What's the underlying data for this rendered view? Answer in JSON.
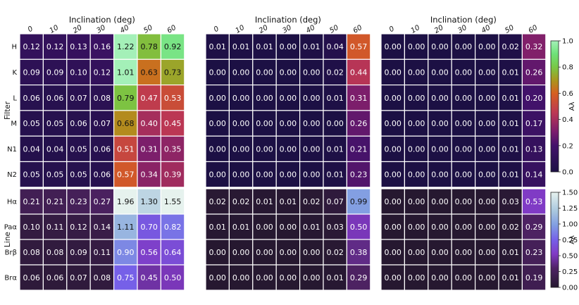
{
  "chart_data": {
    "type": "heatmap",
    "x_title": "Inclination (deg)",
    "x_ticks": [
      "0",
      "10",
      "20",
      "30",
      "40",
      "50",
      "60"
    ],
    "rows": {
      "top": {
        "axis_label": "Filter",
        "categories": [
          "H",
          "K",
          "L",
          "M",
          "N1",
          "N2"
        ],
        "colorbar": {
          "label": "Aλ",
          "range": [
            0.0,
            1.0
          ],
          "ticks": [
            "0.0",
            "0.2",
            "0.4",
            "0.6",
            "0.8",
            "1.0"
          ],
          "colormap": "viridis-like"
        },
        "panels": [
          [
            [
              0.12,
              0.12,
              0.13,
              0.16,
              1.22,
              0.78,
              0.92
            ],
            [
              0.09,
              0.09,
              0.1,
              0.12,
              1.01,
              0.63,
              0.73
            ],
            [
              0.06,
              0.06,
              0.07,
              0.08,
              0.79,
              0.47,
              0.53
            ],
            [
              0.05,
              0.05,
              0.06,
              0.07,
              0.68,
              0.4,
              0.45
            ],
            [
              0.04,
              0.04,
              0.05,
              0.06,
              0.51,
              0.31,
              0.35
            ],
            [
              0.05,
              0.05,
              0.05,
              0.06,
              0.57,
              0.34,
              0.39
            ]
          ],
          [
            [
              0.01,
              0.01,
              0.01,
              0.0,
              0.01,
              0.04,
              0.57
            ],
            [
              0.0,
              0.0,
              0.0,
              0.0,
              0.0,
              0.02,
              0.44
            ],
            [
              0.0,
              0.0,
              0.0,
              0.0,
              0.0,
              0.01,
              0.31
            ],
            [
              0.0,
              0.0,
              0.0,
              0.0,
              0.0,
              0.0,
              0.26
            ],
            [
              0.0,
              0.0,
              0.0,
              0.0,
              0.0,
              0.01,
              0.21
            ],
            [
              0.0,
              0.0,
              0.0,
              0.0,
              0.0,
              0.01,
              0.23
            ]
          ],
          [
            [
              0.0,
              0.0,
              0.0,
              0.0,
              0.0,
              0.02,
              0.32
            ],
            [
              0.0,
              0.0,
              0.0,
              0.0,
              0.0,
              0.01,
              0.26
            ],
            [
              0.0,
              0.0,
              0.0,
              0.0,
              0.0,
              0.01,
              0.2
            ],
            [
              0.0,
              0.0,
              0.0,
              0.0,
              0.0,
              0.01,
              0.17
            ],
            [
              0.0,
              0.0,
              0.0,
              0.0,
              0.0,
              0.01,
              0.13
            ],
            [
              0.0,
              0.0,
              0.0,
              0.0,
              0.0,
              0.01,
              0.14
            ]
          ]
        ]
      },
      "bottom": {
        "axis_label": "Line",
        "categories": [
          "Hα",
          "Paα",
          "Brβ",
          "Brα"
        ],
        "colorbar": {
          "label": "Aλ",
          "range": [
            0.0,
            1.5
          ],
          "ticks": [
            "0.00",
            "0.25",
            "0.50",
            "0.75",
            "1.00",
            "1.25",
            "1.50"
          ],
          "colormap": "purple-blue"
        },
        "panels": [
          [
            [
              0.21,
              0.21,
              0.23,
              0.27,
              1.96,
              1.3,
              1.55
            ],
            [
              0.1,
              0.11,
              0.12,
              0.14,
              1.11,
              0.7,
              0.82
            ],
            [
              0.08,
              0.08,
              0.09,
              0.11,
              0.9,
              0.56,
              0.64
            ],
            [
              0.06,
              0.06,
              0.07,
              0.08,
              0.75,
              0.45,
              0.5
            ]
          ],
          [
            [
              0.02,
              0.02,
              0.01,
              0.01,
              0.02,
              0.07,
              0.99
            ],
            [
              0.01,
              0.01,
              0.0,
              0.0,
              0.01,
              0.03,
              0.5
            ],
            [
              0.0,
              0.0,
              0.0,
              0.0,
              0.0,
              0.02,
              0.38
            ],
            [
              0.0,
              0.0,
              0.0,
              0.0,
              0.0,
              0.01,
              0.29
            ]
          ],
          [
            [
              0.0,
              0.0,
              0.0,
              0.0,
              0.0,
              0.03,
              0.53
            ],
            [
              0.0,
              0.0,
              0.0,
              0.0,
              0.0,
              0.02,
              0.29
            ],
            [
              0.0,
              0.0,
              0.0,
              0.0,
              0.0,
              0.01,
              0.23
            ],
            [
              0.0,
              0.0,
              0.0,
              0.0,
              0.0,
              0.01,
              0.19
            ]
          ]
        ]
      }
    }
  }
}
